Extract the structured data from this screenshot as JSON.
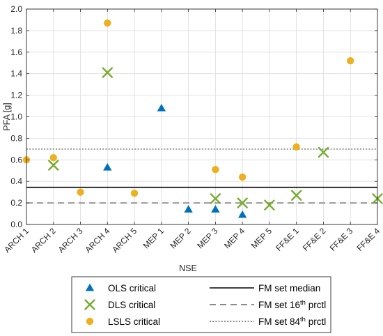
{
  "chart_data": {
    "type": "scatter",
    "title": "",
    "xlabel": "NSE",
    "ylabel": "PFA [g]",
    "ylim": [
      0,
      2.0
    ],
    "yticks": [
      "0.0",
      "0.2",
      "0.4",
      "0.6",
      "0.8",
      "1.0",
      "1.2",
      "1.4",
      "1.6",
      "1.8",
      "2.0"
    ],
    "grid": true,
    "categories": [
      "ARCH 1",
      "ARCH 2",
      "ARCH 3",
      "ARCH 4",
      "ARCH 5",
      "MEP 1",
      "MEP 2",
      "MEP 3",
      "MEP 4",
      "MEP 5",
      "FF&E 1",
      "FF&E 2",
      "FF&E 3",
      "FF&E 4"
    ],
    "series": [
      {
        "name": "OLS critical",
        "marker": "triangle",
        "color": "#0072BD",
        "points": [
          {
            "x": "ARCH 4",
            "y": 0.53
          },
          {
            "x": "MEP 1",
            "y": 1.08
          },
          {
            "x": "MEP 2",
            "y": 0.14
          },
          {
            "x": "MEP 3",
            "y": 0.14
          },
          {
            "x": "MEP 4",
            "y": 0.09
          }
        ]
      },
      {
        "name": "DLS critical",
        "marker": "x",
        "color": "#77AC30",
        "points": [
          {
            "x": "ARCH 2",
            "y": 0.55
          },
          {
            "x": "ARCH 4",
            "y": 1.41
          },
          {
            "x": "MEP 3",
            "y": 0.24
          },
          {
            "x": "MEP 4",
            "y": 0.2
          },
          {
            "x": "MEP 5",
            "y": 0.18
          },
          {
            "x": "FF&E 1",
            "y": 0.27
          },
          {
            "x": "FF&E 2",
            "y": 0.67
          },
          {
            "x": "FF&E 4",
            "y": 0.24
          }
        ]
      },
      {
        "name": "LSLS critical",
        "marker": "circle",
        "color": "#EDB120",
        "points": [
          {
            "x": "ARCH 1",
            "y": 0.6
          },
          {
            "x": "ARCH 2",
            "y": 0.62
          },
          {
            "x": "ARCH 3",
            "y": 0.3
          },
          {
            "x": "ARCH 4",
            "y": 1.87
          },
          {
            "x": "ARCH 5",
            "y": 0.29
          },
          {
            "x": "MEP 3",
            "y": 0.51
          },
          {
            "x": "MEP 4",
            "y": 0.44
          },
          {
            "x": "FF&E 1",
            "y": 0.72
          },
          {
            "x": "FF&E 3",
            "y": 1.52
          }
        ]
      }
    ],
    "reference_lines": [
      {
        "label_main": "FM set median",
        "label_sup": "",
        "label_tail": "",
        "y": 0.345,
        "style": "solid",
        "color": "#000000"
      },
      {
        "label_main": "FM set 16",
        "label_sup": "th",
        "label_tail": " prctl",
        "y": 0.2,
        "style": "dashed",
        "color": "#8c8c8c"
      },
      {
        "label_main": "FM set 84",
        "label_sup": "th",
        "label_tail": " prctl",
        "y": 0.7,
        "style": "dotted",
        "color": "#8c8c8c"
      }
    ],
    "legend_position": "bottom"
  }
}
